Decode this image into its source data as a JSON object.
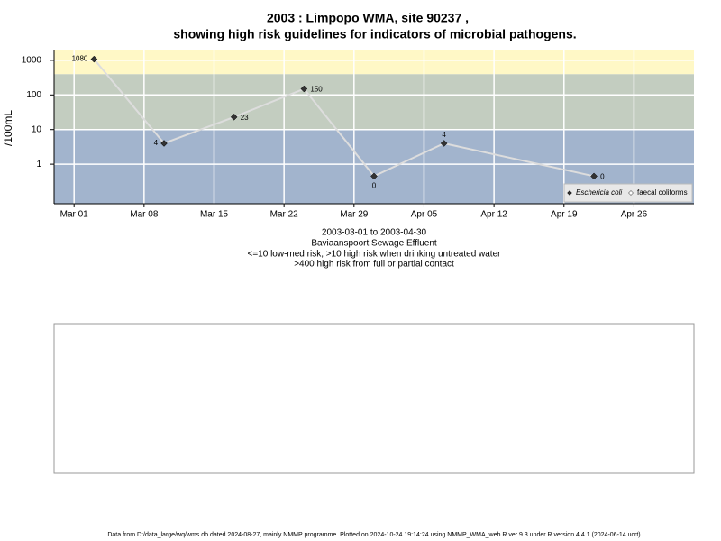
{
  "chart_data": {
    "type": "line",
    "title": "2003 : Limpopo WMA, site 90237 ,",
    "subtitle": "showing high risk guidelines for indicators of microbial pathogens.",
    "y_label": "/100mL",
    "notes": [
      "2003-03-01 to 2003-04-30",
      "Baviaanspoort Sewage Effluent",
      "<=10 low-med risk; >10 high risk when drinking untreated water",
      ">400 high risk from full or partial contact"
    ],
    "footer": "Data from D:/data_large/wq/wms.db dated 2024-08-27, mainly NMMP programme. Plotted on 2024-10-24 19:14:24 using NMMP_WMA_web.R ver 9.3 under R version 4.4.1 (2024-06-14 ucrt)",
    "log_y": true,
    "grid": true,
    "legend_position": "bottom-right",
    "thresholds": [
      10,
      400
    ],
    "band_colors": [
      "#a2b4cd",
      "#c3cdc0",
      "#fff8c6"
    ],
    "x": [
      "2003-03-03",
      "2003-03-10",
      "2003-03-17",
      "2003-03-24",
      "2003-03-31",
      "2003-04-07",
      "2003-04-22"
    ],
    "series": [
      {
        "name": "Eschericia coli",
        "color": "#333333",
        "values": [
          1080,
          4,
          23,
          150,
          0.45,
          4,
          0.45
        ],
        "value_labels": [
          "1080",
          "4",
          "23",
          "150",
          "0",
          "4",
          "0"
        ]
      },
      {
        "name": "faecal coliforms",
        "color": "#ffffff",
        "values": [
          null,
          null,
          null,
          null,
          null,
          null,
          null
        ]
      }
    ],
    "line_color": "#dddddd",
    "xlim": [
      "2003-02-27",
      "2003-05-02"
    ],
    "xticks": [
      {
        "value": "2003-03-01",
        "label": "Mar 01"
      },
      {
        "value": "2003-03-08",
        "label": "Mar 08"
      },
      {
        "value": "2003-03-15",
        "label": "Mar 15"
      },
      {
        "value": "2003-03-22",
        "label": "Mar 22"
      },
      {
        "value": "2003-03-29",
        "label": "Mar 29"
      },
      {
        "value": "2003-04-05",
        "label": "Apr 05"
      },
      {
        "value": "2003-04-12",
        "label": "Apr 12"
      },
      {
        "value": "2003-04-19",
        "label": "Apr 19"
      },
      {
        "value": "2003-04-26",
        "label": "Apr 26"
      }
    ],
    "ylim": [
      0.072,
      2040
    ],
    "yticks": [
      1,
      10,
      100,
      1000
    ]
  }
}
